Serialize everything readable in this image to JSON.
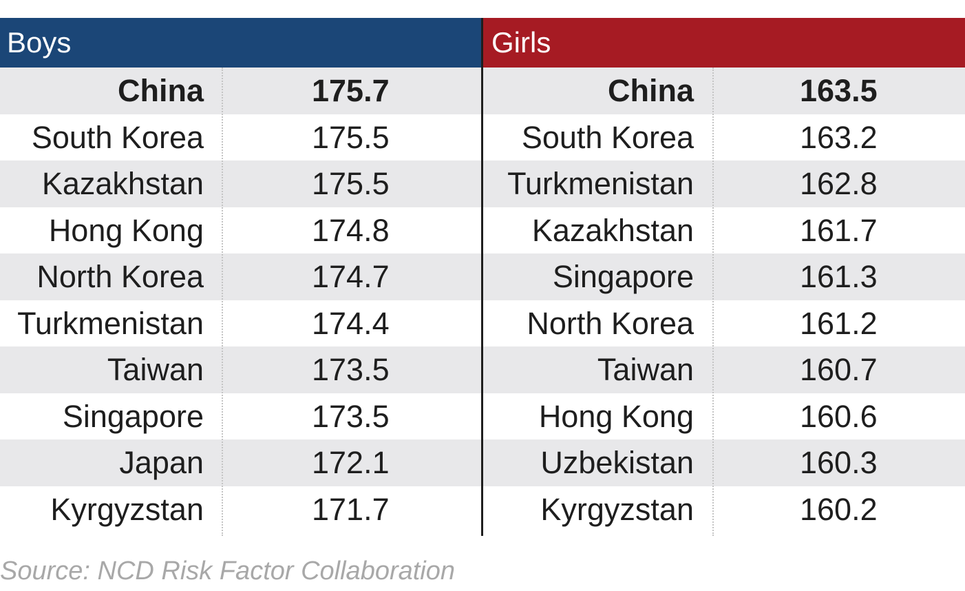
{
  "colors": {
    "boys_header": "#1b4677",
    "girls_header": "#a61b23",
    "row_shade": "#e8e8ea"
  },
  "source": "Source: NCD Risk Factor Collaboration",
  "chart_data": {
    "type": "table",
    "tables": [
      {
        "title": "Boys",
        "rows": [
          {
            "country": "China",
            "value": 175.7
          },
          {
            "country": "South Korea",
            "value": 175.5
          },
          {
            "country": "Kazakhstan",
            "value": 175.5
          },
          {
            "country": "Hong Kong",
            "value": 174.8
          },
          {
            "country": "North Korea",
            "value": 174.7
          },
          {
            "country": "Turkmenistan",
            "value": 174.4
          },
          {
            "country": "Taiwan",
            "value": 173.5
          },
          {
            "country": "Singapore",
            "value": 173.5
          },
          {
            "country": "Japan",
            "value": 172.1
          },
          {
            "country": "Kyrgyzstan",
            "value": 171.7
          }
        ]
      },
      {
        "title": "Girls",
        "rows": [
          {
            "country": "China",
            "value": 163.5
          },
          {
            "country": "South Korea",
            "value": 163.2
          },
          {
            "country": "Turkmenistan",
            "value": 162.8
          },
          {
            "country": "Kazakhstan",
            "value": 161.7
          },
          {
            "country": "Singapore",
            "value": 161.3
          },
          {
            "country": "North Korea",
            "value": 161.2
          },
          {
            "country": "Taiwan",
            "value": 160.7
          },
          {
            "country": "Hong Kong",
            "value": 160.6
          },
          {
            "country": "Uzbekistan",
            "value": 160.3
          },
          {
            "country": "Kyrgyzstan",
            "value": 160.2
          }
        ]
      }
    ]
  }
}
